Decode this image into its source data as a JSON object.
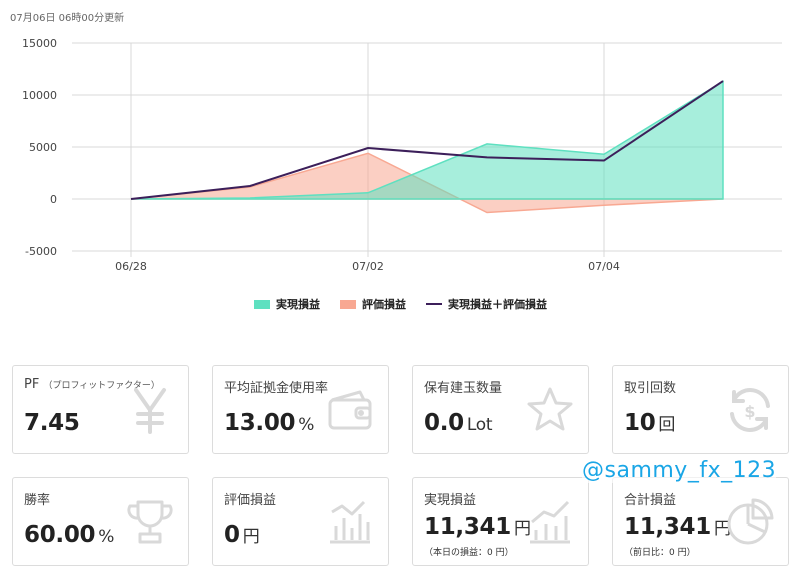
{
  "updated_text": "07月06日 06時00分更新",
  "chart_data": {
    "type": "area",
    "x": [
      "06/28",
      "06/30",
      "07/02",
      "07/03",
      "07/04",
      "07/05"
    ],
    "x_tick_labels": [
      "06/28",
      "07/02",
      "07/04"
    ],
    "y_ticks": [
      15000,
      10000,
      5000,
      0,
      -5000
    ],
    "ylim": [
      -5000,
      15000
    ],
    "series": [
      {
        "name": "実現損益",
        "type": "area",
        "color": "#5ee0c0",
        "values": [
          0,
          100,
          600,
          5300,
          4300,
          11300
        ]
      },
      {
        "name": "評価損益",
        "type": "area",
        "color": "#f8a892",
        "values": [
          0,
          1150,
          4400,
          -1300,
          -600,
          0
        ]
      },
      {
        "name": "実現損益＋評価損益",
        "type": "line",
        "color": "#3c1f5a",
        "values": [
          0,
          1250,
          4900,
          4000,
          3700,
          11341
        ]
      }
    ],
    "legend_position": "bottom",
    "grid": true
  },
  "cards": [
    {
      "title": "PF",
      "note": "（プロフィットファクター）",
      "value": "7.45",
      "unit": "",
      "sub": "",
      "icon": "yen-icon"
    },
    {
      "title": "平均証拠金使用率",
      "note": "",
      "value": "13.00",
      "unit": "%",
      "sub": "",
      "icon": "wallet-icon"
    },
    {
      "title": "保有建玉数量",
      "note": "",
      "value": "0.0",
      "unit": "Lot",
      "sub": "",
      "icon": "star-icon"
    },
    {
      "title": "取引回数",
      "note": "",
      "value": "10",
      "unit": "回",
      "sub": "",
      "icon": "exchange-icon"
    },
    {
      "title": "勝率",
      "note": "",
      "value": "60.00",
      "unit": "%",
      "sub": "",
      "icon": "trophy-icon"
    },
    {
      "title": "評価損益",
      "note": "",
      "value": "0",
      "unit": "円",
      "sub": "",
      "icon": "bar-chart-icon"
    },
    {
      "title": "実現損益",
      "note": "",
      "value": "11,341",
      "unit": "円",
      "sub": "（本日の損益：0 円）",
      "icon": "line-chart-icon"
    },
    {
      "title": "合計損益",
      "note": "",
      "value": "11,341",
      "unit": "円",
      "sub": "（前日比：0 円）",
      "icon": "pie-chart-icon"
    }
  ],
  "watermark": "@sammy_fx_123",
  "colors": {
    "icon_gray": "#d9d9d9",
    "watermark": "#1aa6e6"
  }
}
